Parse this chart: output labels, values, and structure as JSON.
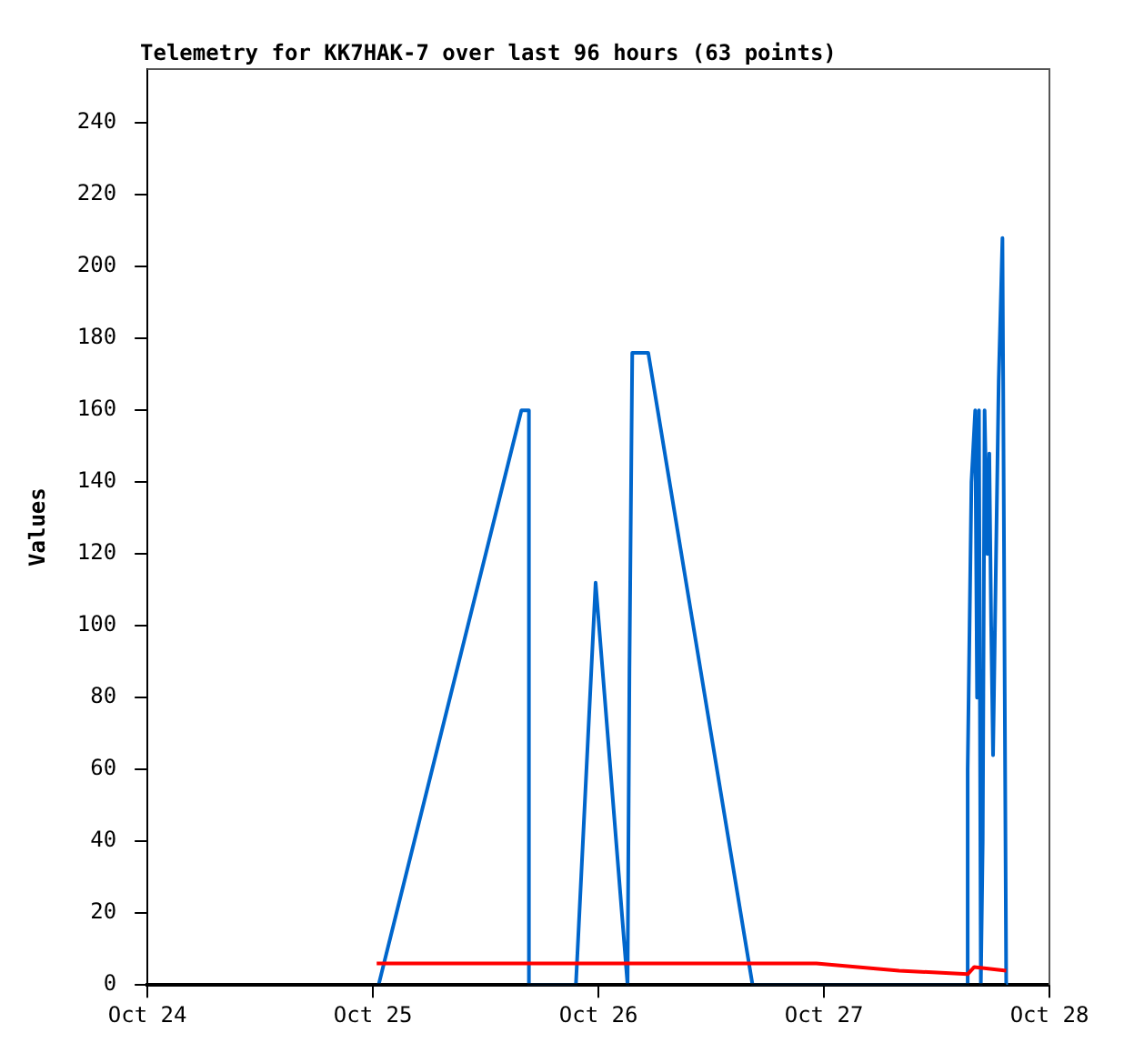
{
  "chart_data": {
    "type": "line",
    "title": "Telemetry for KK7HAK-7 over last 96 hours (63 points)",
    "ylabel": "Values",
    "xlim": [
      "--10-24",
      "--10-28"
    ],
    "xticks": [
      {
        "value": "--10-24",
        "label": "Oct 24"
      },
      {
        "value": "--10-25",
        "label": "Oct 25"
      },
      {
        "value": "--10-26",
        "label": "Oct 26"
      },
      {
        "value": "--10-27",
        "label": "Oct 27"
      },
      {
        "value": "--10-28",
        "label": "Oct 28"
      }
    ],
    "ylim": [
      0,
      255
    ],
    "yticks": [
      0,
      20,
      40,
      60,
      80,
      100,
      120,
      140,
      160,
      180,
      200,
      220,
      240
    ],
    "grid": false,
    "legend": false,
    "marker": "none",
    "line_style": "solid",
    "series": [
      {
        "color": "#ff0000",
        "x": [
          "--10-25T00:24",
          "--10-26T23:12",
          "--10-27T08:00",
          "--10-27T15:18",
          "--10-27T16:00",
          "--10-27T19:24"
        ],
        "values": [
          6,
          6,
          4,
          3,
          5,
          4
        ]
      },
      {
        "color": "#000000",
        "x": [
          "--10-25T00:24",
          "--10-27T19:24"
        ],
        "values": [
          0,
          0
        ]
      },
      {
        "color": "#0066cc",
        "x": [
          "--10-25T00:36",
          "--10-25T15:48",
          "--10-25T16:36",
          "--10-25T16:36",
          "--10-25T21:36",
          "--10-25T23:42",
          "--10-26T03:06",
          "--10-26T03:18",
          "--10-26T03:36",
          "--10-26T05:18",
          "--10-26T16:24",
          "--10-27T15:18",
          "--10-27T15:18",
          "--10-27T15:30",
          "--10-27T15:42",
          "--10-27T16:06",
          "--10-27T16:18",
          "--10-27T16:30",
          "--10-27T16:42",
          "--10-27T16:54",
          "--10-27T17:06",
          "--10-27T17:24",
          "--10-27T17:36",
          "--10-27T17:48",
          "--10-27T18:00",
          "--10-27T18:36",
          "--10-27T19:00",
          "--10-27T19:12",
          "--10-27T19:24"
        ],
        "values": [
          0,
          160,
          160,
          0,
          0,
          112,
          0,
          88,
          176,
          176,
          0,
          0,
          60,
          100,
          140,
          160,
          80,
          160,
          0,
          40,
          160,
          120,
          148,
          100,
          64,
          168,
          208,
          104,
          0
        ]
      }
    ]
  }
}
